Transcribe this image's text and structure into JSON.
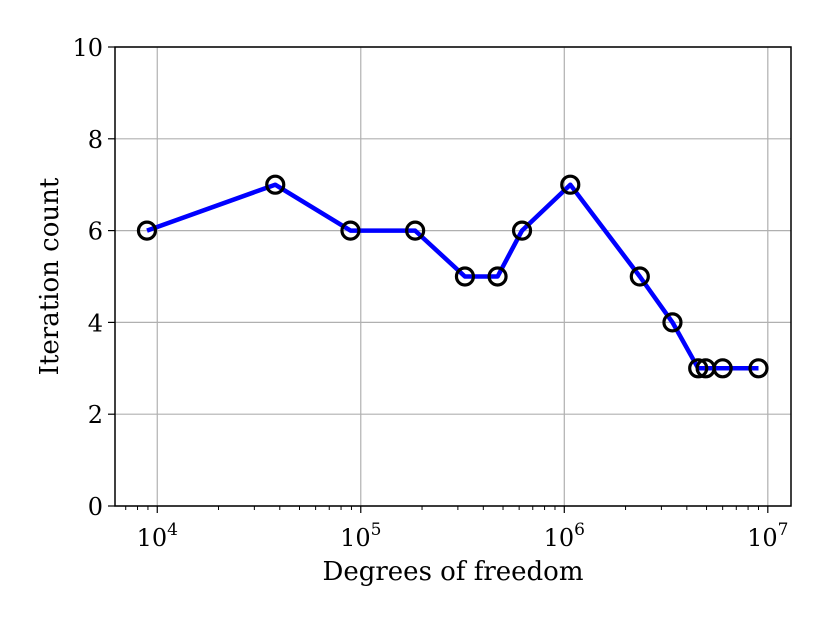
{
  "chart_data": {
    "type": "line",
    "xscale": "log",
    "xlabel": "Degrees of freedom",
    "ylabel": "Iteration count",
    "xlim": [
      6200,
      13000000
    ],
    "ylim": [
      0,
      10
    ],
    "x_ticks": [
      {
        "value": 10000,
        "base": "10",
        "exp": "4"
      },
      {
        "value": 100000,
        "base": "10",
        "exp": "5"
      },
      {
        "value": 1000000,
        "base": "10",
        "exp": "6"
      },
      {
        "value": 10000000,
        "base": "10",
        "exp": "7"
      }
    ],
    "y_ticks": [
      0,
      2,
      4,
      6,
      8,
      10
    ],
    "grid": true,
    "line_color": "#0000ff",
    "marker": "open-circle",
    "marker_color": "#000000",
    "series": [
      {
        "x": [
          8900,
          38000,
          89000,
          185000,
          325000,
          470000,
          620000,
          1070000,
          2350000,
          3400000,
          4550000,
          4950000,
          6000000,
          9000000
        ],
        "y": [
          6,
          7,
          6,
          6,
          5,
          5,
          6,
          7,
          5,
          4,
          3,
          3,
          3,
          3
        ]
      }
    ]
  }
}
